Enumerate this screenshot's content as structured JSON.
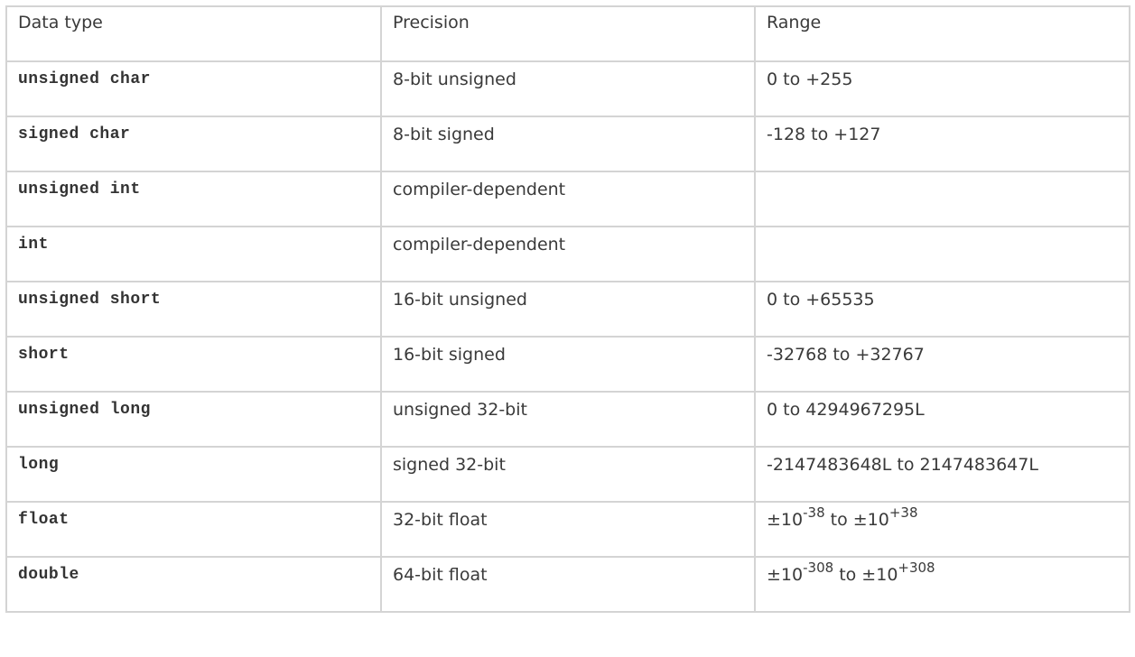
{
  "table": {
    "headers": [
      "Data type",
      "Precision",
      "Range"
    ],
    "rows": [
      {
        "type": "unsigned char",
        "precision": "8-bit unsigned",
        "range": "0 to +255"
      },
      {
        "type": "signed char",
        "precision": "8-bit signed",
        "range": "-128 to +127"
      },
      {
        "type": "unsigned int",
        "precision": "compiler-dependent",
        "range": ""
      },
      {
        "type": "int",
        "precision": "compiler-dependent",
        "range": ""
      },
      {
        "type": "unsigned short",
        "precision": "16-bit unsigned",
        "range": "0 to +65535"
      },
      {
        "type": "short",
        "precision": "16-bit signed",
        "range": "-32768 to +32767"
      },
      {
        "type": "unsigned long",
        "precision": "unsigned 32-bit",
        "range": "0 to 4294967295L"
      },
      {
        "type": "long",
        "precision": "signed 32-bit",
        "range": "-2147483648L to 2147483647L"
      },
      {
        "type": "float",
        "precision": "32-bit float",
        "range_parts": {
          "base1": "±10",
          "exp1": "-38",
          "mid": " to ±10",
          "exp2": "+38"
        }
      },
      {
        "type": "double",
        "precision": "64-bit float",
        "range_parts": {
          "base1": "±10",
          "exp1": "-308",
          "mid": " to ±10",
          "exp2": "+308"
        }
      }
    ]
  },
  "colors": {
    "border": "#d4d4d4",
    "text": "#3a3a3a"
  }
}
